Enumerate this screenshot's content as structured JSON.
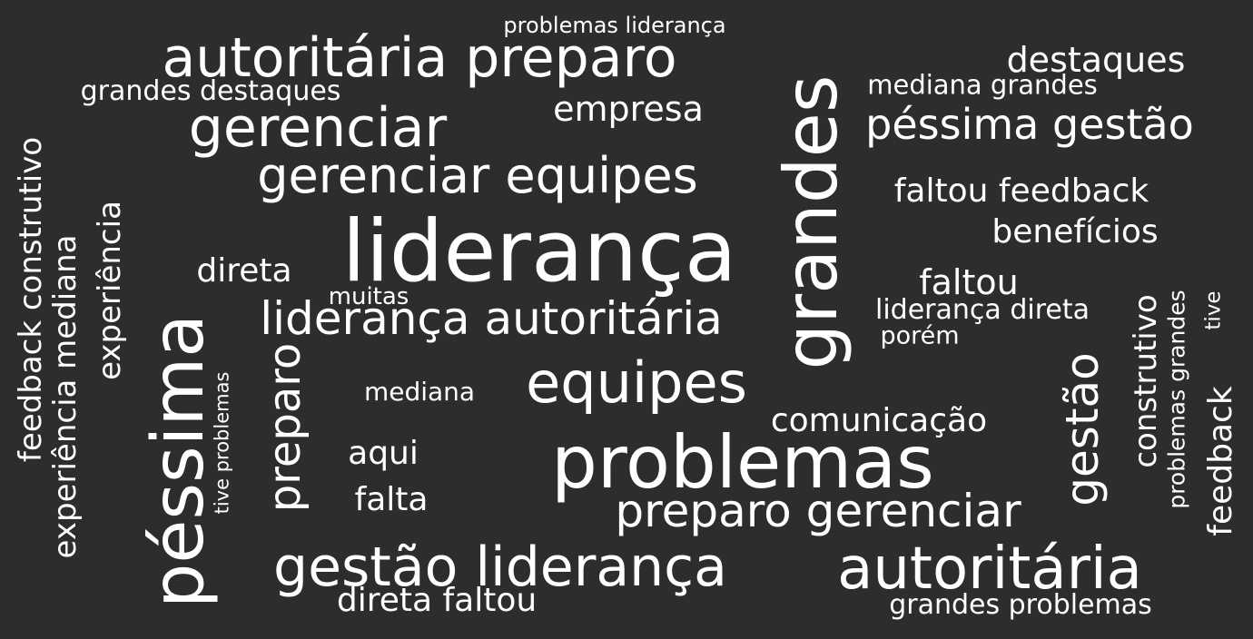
{
  "wordcloud": {
    "background": "#2d2d2d",
    "text_color": "#ffffff",
    "words": {
      "autoritaria_preparo": "autoritária preparo",
      "problemas_lideranca_top": "problemas liderança",
      "destaques": "destaques",
      "mediana_grandes": "mediana grandes",
      "grandes_destaques": "grandes destaques",
      "gerenciar": "gerenciar",
      "empresa": "empresa",
      "pessima_gestao": "péssima gestão",
      "gerenciar_equipes": "gerenciar equipes",
      "faltou_feedback": "faltou feedback",
      "beneficios": "benefícios",
      "lideranca": "liderança",
      "direta": "direta",
      "faltou": "faltou",
      "muitas": "muitas",
      "lideranca_direta": "liderança direta",
      "lideranca_autoritaria": "liderança autoritária",
      "porem": "porém",
      "equipes": "equipes",
      "mediana": "mediana",
      "comunicacao": "comunicação",
      "aqui": "aqui",
      "problemas": "problemas",
      "falta": "falta",
      "preparo_gerenciar": "preparo gerenciar",
      "gestao_lideranca": "gestão liderança",
      "autoritaria": "autoritária",
      "direta_faltou": "direta faltou",
      "grandes_problemas": "grandes problemas",
      "feedback_construtivo": "feedback construtivo",
      "experiencia_mediana": "experiência mediana",
      "experiencia": "experiência",
      "pessima": "péssima",
      "tive_problemas": "tive problemas",
      "preparo": "preparo",
      "grandes": "grandes",
      "gestao": "gestão",
      "construtivo": "construtivo",
      "problemas_grandes": "problemas grandes",
      "tive": "tive",
      "feedback": "feedback"
    }
  }
}
